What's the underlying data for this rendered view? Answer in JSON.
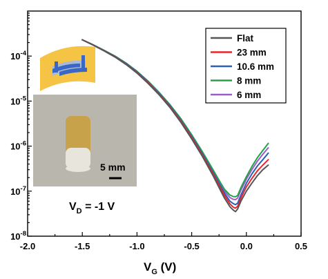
{
  "chart_data": {
    "type": "line",
    "title": "",
    "xlabel": {
      "main": "V",
      "sub": "G",
      "suffix": " (V)"
    },
    "ylabel": "",
    "xlim": [
      -2.0,
      0.5
    ],
    "ylim": [
      1e-08,
      0.001
    ],
    "yscale": "log",
    "grid": false,
    "legend_position": "top-right",
    "x_ticks": [
      -2.0,
      -1.5,
      -1.0,
      -0.5,
      0.0,
      0.5
    ],
    "x_tick_labels": [
      "-2.0",
      "-1.5",
      "-1.0",
      "-0.5",
      "0.0",
      "0.5"
    ],
    "y_ticks": [
      1e-08,
      1e-07,
      1e-06,
      1e-05,
      0.0001
    ],
    "y_tick_labels": [
      {
        "base": "10",
        "exp": "-8"
      },
      {
        "base": "10",
        "exp": "-7"
      },
      {
        "base": "10",
        "exp": "-6"
      },
      {
        "base": "10",
        "exp": "-5"
      },
      {
        "base": "10",
        "exp": "-4"
      }
    ],
    "x": [
      -1.5,
      -1.4,
      -1.3,
      -1.2,
      -1.1,
      -1.0,
      -0.9,
      -0.8,
      -0.7,
      -0.6,
      -0.5,
      -0.4,
      -0.3,
      -0.25,
      -0.2,
      -0.15,
      -0.12,
      -0.1,
      -0.08,
      -0.05,
      0.0,
      0.05,
      0.1,
      0.15,
      0.2
    ],
    "series": [
      {
        "name": "Flat",
        "color": "#555555",
        "values": [
          0.00023,
          0.000175,
          0.00013,
          9.5e-05,
          6.5e-05,
          4.2e-05,
          2.5e-05,
          1.4e-05,
          7.3e-06,
          3.4e-06,
          1.45e-06,
          5.8e-07,
          2.1e-07,
          1.2e-07,
          7e-08,
          4.5e-08,
          3.8e-08,
          3.5e-08,
          4e-08,
          6e-08,
          1e-07,
          1.5e-07,
          2.2e-07,
          3e-07,
          3.8e-07
        ]
      },
      {
        "name": "23 mm",
        "color": "#e8242c",
        "values": [
          0.00023,
          0.000176,
          0.000131,
          9.6e-05,
          6.6e-05,
          4.3e-05,
          2.6e-05,
          1.45e-05,
          7.6e-06,
          3.6e-06,
          1.55e-06,
          6.2e-07,
          2.3e-07,
          1.35e-07,
          8e-08,
          5.2e-08,
          4.4e-08,
          4.2e-08,
          4.6e-08,
          7e-08,
          1.25e-07,
          1.9e-07,
          2.8e-07,
          3.8e-07,
          5e-07
        ]
      },
      {
        "name": "10.6 mm",
        "color": "#2d5fb4",
        "values": [
          0.00023,
          0.000177,
          0.000132,
          9.8e-05,
          6.8e-05,
          4.45e-05,
          2.7e-05,
          1.5e-05,
          8e-06,
          3.8e-06,
          1.65e-06,
          6.7e-07,
          2.5e-07,
          1.5e-07,
          9e-08,
          6e-08,
          5.3e-08,
          5e-08,
          5.4e-08,
          8.2e-08,
          1.5e-07,
          2.4e-07,
          3.6e-07,
          5e-07,
          7e-07
        ]
      },
      {
        "name": "8 mm",
        "color": "#22a34a",
        "values": [
          0.00023,
          0.000178,
          0.000134,
          0.0001,
          7e-05,
          4.6e-05,
          2.8e-05,
          1.58e-05,
          8.4e-06,
          4.1e-06,
          1.8e-06,
          7.4e-07,
          2.85e-07,
          1.75e-07,
          1.1e-07,
          8.2e-08,
          7.6e-08,
          7.5e-08,
          8e-08,
          1.2e-07,
          2.1e-07,
          3.5e-07,
          5.5e-07,
          8e-07,
          1.15e-06
        ]
      },
      {
        "name": "6 mm",
        "color": "#9a5cc8",
        "values": [
          0.00023,
          0.000177,
          0.000133,
          9.9e-05,
          6.9e-05,
          4.5e-05,
          2.75e-05,
          1.54e-05,
          8.2e-06,
          3.95e-06,
          1.72e-06,
          7e-07,
          2.7e-07,
          1.62e-07,
          1e-07,
          7.2e-08,
          6.6e-08,
          6.5e-08,
          7e-08,
          1.05e-07,
          1.85e-07,
          3e-07,
          4.6e-07,
          6.6e-07,
          9.2e-07
        ]
      }
    ],
    "annotations": [
      {
        "main": "V",
        "sub": "D",
        "suffix": " = -1 V"
      }
    ],
    "inset": {
      "scale_bar_label": "5 mm",
      "device_colors": {
        "substrate": "#f6c445",
        "channel": "#3a66c4",
        "contact": "#a9b9d8"
      },
      "photo_colors": {
        "background": "#b9b6ad",
        "tube_gold": "#c7a24a",
        "tube_glass": "#e8e6dc"
      }
    }
  }
}
